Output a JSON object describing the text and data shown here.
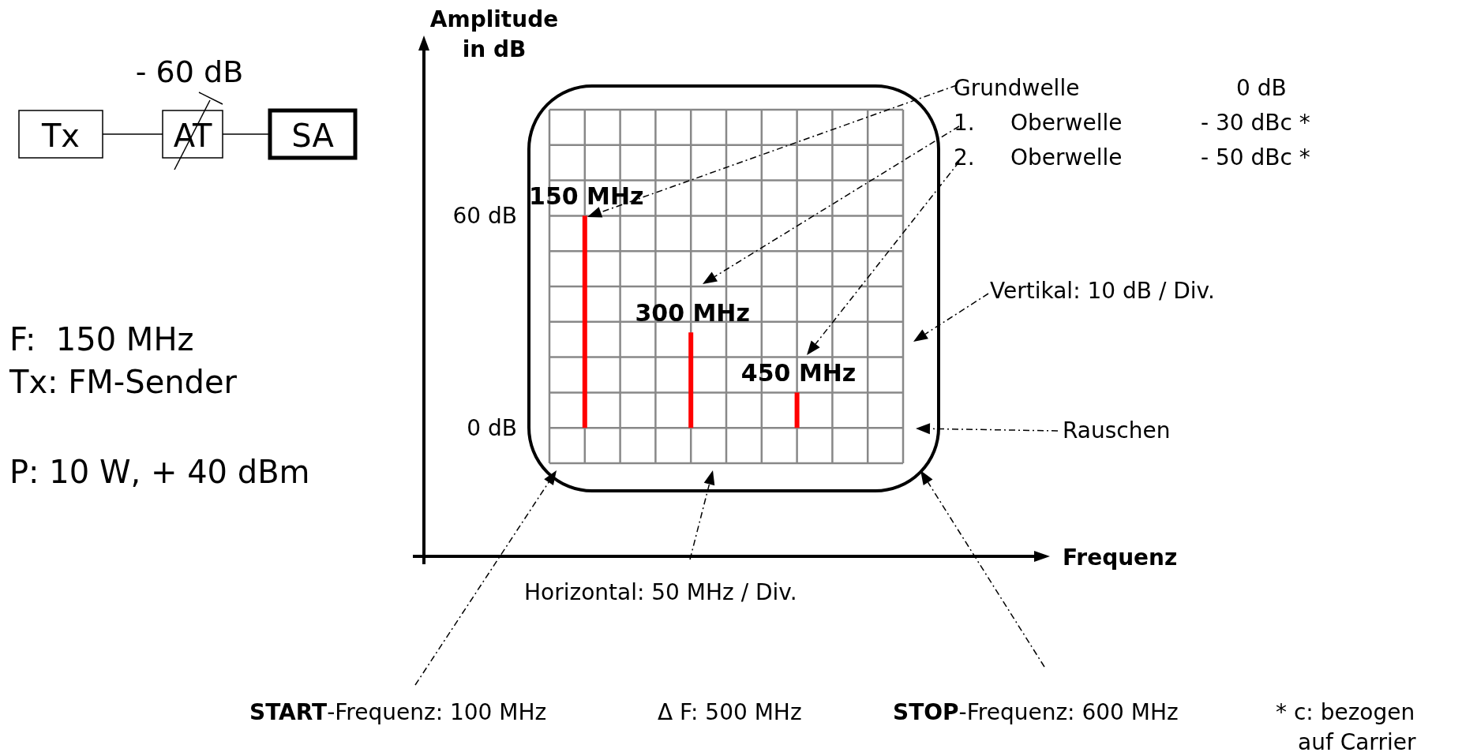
{
  "chart_data": {
    "type": "bar",
    "ylabel": "Amplitude\nin dB",
    "categories": [
      null,
      null,
      null
    ],
    "values": [
      60,
      27,
      10
    ],
    "color": "#ff0000",
    "ylim": [
      -10,
      90
    ],
    "yticks": [
      {
        "value": -10,
        "label": null
      },
      {
        "value": 0,
        "label": "0 dB"
      },
      {
        "value": 10,
        "label": null
      },
      {
        "value": 20,
        "label": null
      },
      {
        "value": 30,
        "label": null
      },
      {
        "value": 40,
        "label": null
      },
      {
        "value": 50,
        "label": null
      },
      {
        "value": 60,
        "label": "60 dB"
      },
      {
        "value": 70,
        "label": null
      },
      {
        "value": 80,
        "label": null
      },
      {
        "value": 90,
        "label": null
      }
    ],
    "grid": true,
    "tick_labels": "y",
    "annotations": [
      "Tx",
      "AT",
      "SA",
      "- 60 dB",
      "F:  150 MHz",
      "Tx: FM-Sender",
      "P: 10 W, + 40 dBm",
      "Grundwelle",
      "0 dB",
      "1.",
      "Oberwelle",
      "- 30 dBc *",
      "2.",
      "Oberwelle",
      "- 50 dBc *",
      "Vertikal: 10 dB / Div.",
      "Rauschen",
      "Horizontal: 50 MHz / Div.",
      "START-Frequenz: 100 MHz",
      "Δ F: 500 MHz",
      "STOP-Frequenz: 600 MHz",
      "* c: bezogen",
      "auf Carrier",
      "Frequenz",
      "150 MHz",
      "300 MHz",
      "450 MHz"
    ]
  }
}
